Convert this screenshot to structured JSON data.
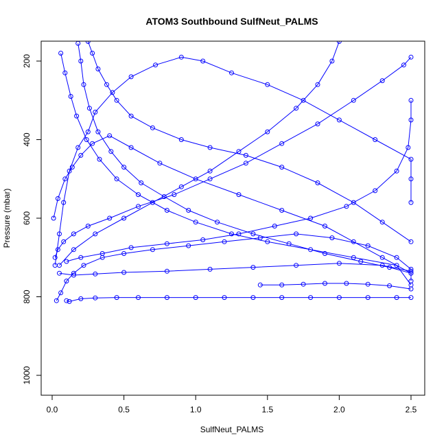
{
  "chart_data": {
    "type": "line",
    "title": "ATOM3 Southbound SulfNeut_PALMS",
    "xlabel": "SulfNeut_PALMS",
    "ylabel": "Pressure (mbar)",
    "xlim": [
      0.0,
      2.5
    ],
    "ylim": [
      1040,
      150
    ],
    "y_axis_reversed": true,
    "x_ticks": [
      "0.0",
      "0.5",
      "1.0",
      "1.5",
      "2.0",
      "2.5"
    ],
    "x_tick_values": [
      0,
      0.5,
      1.0,
      1.5,
      2.0,
      2.5
    ],
    "y_ticks": [
      "200",
      "400",
      "600",
      "800",
      "1000"
    ],
    "y_tick_values": [
      200,
      400,
      600,
      800,
      1000
    ],
    "grid": false,
    "legend": "none",
    "series_color": "#0000ff",
    "marker": "open-circle",
    "series": [
      {
        "name": "",
        "x": [
          0.02,
          0.05,
          0.08,
          0.12,
          0.18,
          0.25,
          0.3,
          0.42,
          0.55,
          0.72,
          0.9,
          1.05,
          1.25,
          1.5,
          1.75,
          2.0,
          2.25,
          2.5,
          2.5,
          2.5
        ],
        "y": [
          720,
          640,
          560,
          480,
          420,
          380,
          330,
          280,
          240,
          210,
          190,
          200,
          230,
          260,
          300,
          350,
          400,
          450,
          500,
          560
        ]
      },
      {
        "name": "",
        "x": [
          0.03,
          0.06,
          0.1,
          0.15,
          0.22,
          0.35,
          0.5,
          0.7,
          0.95,
          1.2,
          1.45,
          1.7,
          1.95,
          2.2,
          2.4,
          2.5,
          2.5
        ],
        "y": [
          810,
          790,
          760,
          740,
          720,
          700,
          690,
          680,
          670,
          660,
          650,
          640,
          650,
          670,
          700,
          730,
          760
        ]
      },
      {
        "name": "",
        "x": [
          0.1,
          0.12,
          0.2,
          0.3,
          0.45,
          0.6,
          0.8,
          1.0,
          1.2,
          1.4,
          1.6,
          1.8,
          2.0,
          2.2,
          2.4,
          2.5
        ],
        "y": [
          810,
          812,
          805,
          803,
          802,
          802,
          802,
          802,
          802,
          802,
          802,
          802,
          802,
          802,
          802,
          802
        ]
      },
      {
        "name": "",
        "x": [
          0.01,
          0.04,
          0.09,
          0.14,
          0.2,
          0.28,
          0.4,
          0.55,
          0.75,
          1.0,
          1.3,
          1.6,
          1.9,
          2.1,
          2.3,
          2.5
        ],
        "y": [
          600,
          550,
          500,
          470,
          440,
          410,
          390,
          420,
          460,
          500,
          540,
          580,
          620,
          660,
          700,
          740
        ]
      },
      {
        "name": "",
        "x": [
          2.5,
          2.45,
          2.3,
          2.1,
          1.85,
          1.6,
          1.35,
          1.1,
          0.85,
          0.6,
          0.4,
          0.25,
          0.15,
          0.08,
          0.04,
          0.02
        ],
        "y": [
          190,
          210,
          250,
          300,
          360,
          410,
          460,
          500,
          540,
          570,
          600,
          620,
          640,
          660,
          680,
          700
        ]
      },
      {
        "name": "",
        "x": [
          0.05,
          0.15,
          0.3,
          0.5,
          0.8,
          1.1,
          1.4,
          1.7,
          2.0,
          2.3,
          2.5
        ],
        "y": [
          740,
          745,
          742,
          738,
          735,
          730,
          725,
          720,
          715,
          720,
          735
        ]
      },
      {
        "name": "",
        "x": [
          0.18,
          0.2,
          0.22,
          0.26,
          0.32,
          0.41,
          0.5,
          0.62,
          0.78,
          0.95,
          1.15,
          1.4,
          1.65,
          1.9,
          2.15,
          2.35,
          2.5
        ],
        "y": [
          155,
          200,
          260,
          320,
          380,
          430,
          470,
          510,
          545,
          580,
          610,
          640,
          665,
          690,
          710,
          725,
          740
        ]
      },
      {
        "name": "",
        "x": [
          2.5,
          2.5,
          2.48,
          2.4,
          2.25,
          2.05,
          1.8,
          1.55,
          1.3,
          1.05,
          0.8,
          0.55,
          0.35,
          0.2,
          0.1
        ],
        "y": [
          300,
          350,
          420,
          480,
          530,
          570,
          600,
          620,
          640,
          655,
          665,
          675,
          690,
          700,
          710
        ]
      },
      {
        "name": "",
        "x": [
          0.06,
          0.09,
          0.13,
          0.17,
          0.24,
          0.33,
          0.45,
          0.6,
          0.8,
          1.0,
          1.25,
          1.5,
          1.8,
          2.1,
          2.4,
          2.5
        ],
        "y": [
          180,
          230,
          290,
          340,
          400,
          450,
          500,
          540,
          580,
          610,
          640,
          660,
          680,
          700,
          720,
          770
        ]
      },
      {
        "name": "",
        "x": [
          1.45,
          1.6,
          1.75,
          1.9,
          2.05,
          2.2,
          2.35,
          2.5
        ],
        "y": [
          770,
          770,
          768,
          766,
          766,
          768,
          772,
          780
        ]
      },
      {
        "name": "",
        "x": [
          0.25,
          0.28,
          0.32,
          0.38,
          0.45,
          0.55,
          0.7,
          0.9,
          1.1,
          1.35,
          1.6,
          1.85,
          2.1,
          2.3,
          2.5
        ],
        "y": [
          150,
          180,
          220,
          260,
          300,
          340,
          370,
          400,
          420,
          440,
          470,
          510,
          560,
          610,
          660
        ]
      },
      {
        "name": "",
        "x": [
          2.0,
          1.95,
          1.85,
          1.7,
          1.5,
          1.3,
          1.1,
          0.9,
          0.7,
          0.5,
          0.3,
          0.15,
          0.05
        ],
        "y": [
          150,
          200,
          260,
          320,
          380,
          430,
          480,
          520,
          560,
          600,
          640,
          680,
          720
        ]
      }
    ]
  }
}
